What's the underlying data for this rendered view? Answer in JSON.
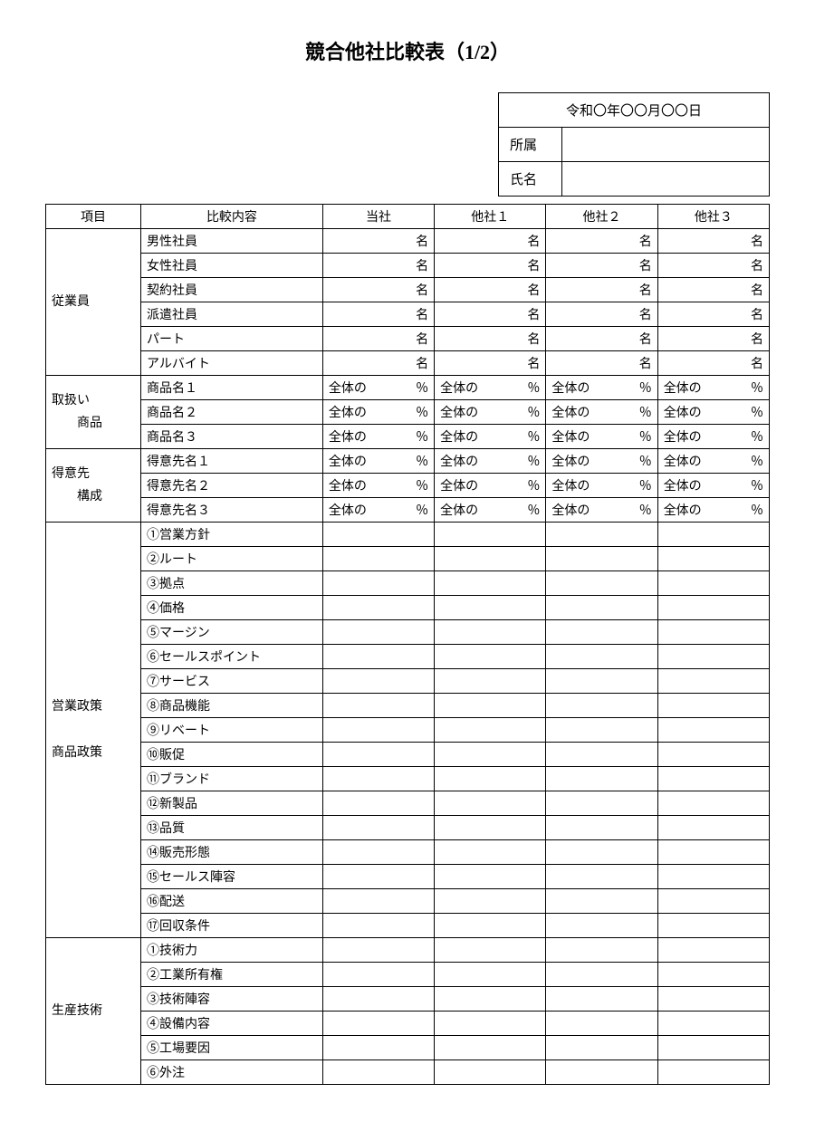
{
  "title": "競合他社比較表（1/2）",
  "header": {
    "date": "令和〇年〇〇月〇〇日",
    "affiliation_label": "所属",
    "name_label": "氏名"
  },
  "columns": {
    "category": "項目",
    "item": "比較内容",
    "ours": "当社",
    "other1": "他社１",
    "other2": "他社２",
    "other3": "他社３"
  },
  "unit_name": "名",
  "pct_prefix": "全体の",
  "pct_suffix": "％",
  "sections": {
    "employees": {
      "label": "従業員",
      "rows": [
        "男性社員",
        "女性社員",
        "契約社員",
        "派遣社員",
        "パート",
        "アルバイト"
      ]
    },
    "products": {
      "label_line1": "取扱い",
      "label_line2": "商品",
      "rows": [
        "商品名１",
        "商品名２",
        "商品名３"
      ]
    },
    "customers": {
      "label_line1": "得意先",
      "label_line2": "構成",
      "rows": [
        "得意先名１",
        "得意先名２",
        "得意先名３"
      ]
    },
    "sales_policy": {
      "label_line1": "営業政策",
      "label_line2": "商品政策",
      "rows": [
        "①営業方針",
        "②ルート",
        "③拠点",
        "④価格",
        "⑤マージン",
        "⑥セールスポイント",
        "⑦サービス",
        "⑧商品機能",
        "⑨リベート",
        "⑩販促",
        "⑪ブランド",
        "⑫新製品",
        "⑬品質",
        "⑭販売形態",
        "⑮セールス陣容",
        "⑯配送",
        "⑰回収条件"
      ]
    },
    "production": {
      "label": "生産技術",
      "rows": [
        "①技術力",
        "②工業所有権",
        "③技術陣容",
        "④設備内容",
        "⑤工場要因",
        "⑥外注"
      ]
    }
  }
}
